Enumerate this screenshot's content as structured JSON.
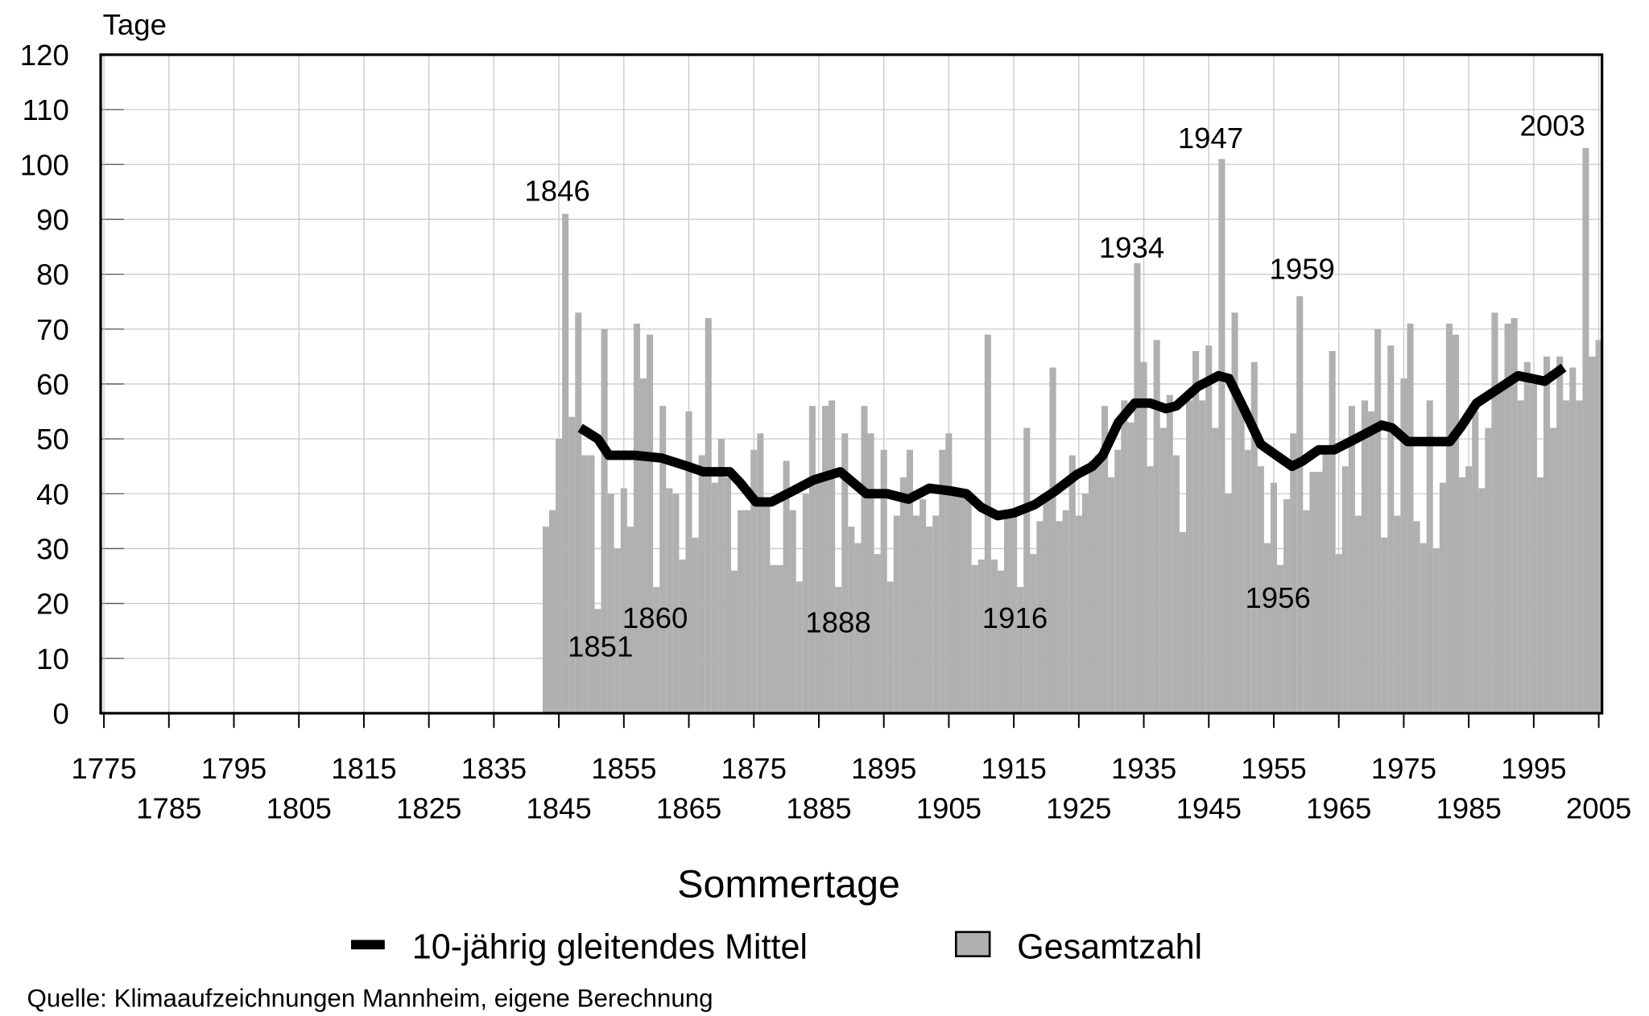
{
  "chart_data": {
    "type": "bar",
    "title": "Sommertage",
    "ylabel": "Tage",
    "source": "Quelle: Klimaaufzeichnungen Mannheim, eigene Berechnung",
    "xlim": [
      1774.5,
      2005.5
    ],
    "ylim": [
      0,
      120
    ],
    "xticks": [
      1775,
      1785,
      1795,
      1805,
      1815,
      1825,
      1835,
      1845,
      1855,
      1865,
      1875,
      1885,
      1895,
      1905,
      1915,
      1925,
      1935,
      1945,
      1955,
      1965,
      1975,
      1985,
      1995,
      2005
    ],
    "yticks": [
      0,
      10,
      20,
      30,
      40,
      50,
      60,
      70,
      80,
      90,
      100,
      110,
      120
    ],
    "grid": true,
    "series": [
      {
        "name": "Gesamtzahl",
        "type": "bar",
        "color": "#b0b0b0",
        "x": [
          1843,
          1844,
          1845,
          1846,
          1847,
          1848,
          1849,
          1850,
          1851,
          1852,
          1853,
          1854,
          1855,
          1856,
          1857,
          1858,
          1859,
          1860,
          1861,
          1862,
          1863,
          1864,
          1865,
          1866,
          1867,
          1868,
          1869,
          1870,
          1871,
          1872,
          1873,
          1874,
          1875,
          1876,
          1877,
          1878,
          1879,
          1880,
          1881,
          1882,
          1883,
          1884,
          1885,
          1886,
          1887,
          1888,
          1889,
          1890,
          1891,
          1892,
          1893,
          1894,
          1895,
          1896,
          1897,
          1898,
          1899,
          1900,
          1901,
          1902,
          1903,
          1904,
          1905,
          1906,
          1907,
          1908,
          1909,
          1910,
          1911,
          1912,
          1913,
          1914,
          1915,
          1916,
          1917,
          1918,
          1919,
          1920,
          1921,
          1922,
          1923,
          1924,
          1925,
          1926,
          1927,
          1928,
          1929,
          1930,
          1931,
          1932,
          1933,
          1934,
          1935,
          1936,
          1937,
          1938,
          1939,
          1940,
          1941,
          1942,
          1943,
          1944,
          1945,
          1946,
          1947,
          1948,
          1949,
          1950,
          1951,
          1952,
          1953,
          1954,
          1955,
          1956,
          1957,
          1958,
          1959,
          1960,
          1961,
          1962,
          1963,
          1964,
          1965,
          1966,
          1967,
          1968,
          1969,
          1970,
          1971,
          1972,
          1973,
          1974,
          1975,
          1976,
          1977,
          1978,
          1979,
          1980,
          1981,
          1982,
          1983,
          1984,
          1985,
          1986,
          1987,
          1988,
          1989,
          1990,
          1991,
          1992,
          1993,
          1994,
          1995,
          1996,
          1997,
          1998,
          1999,
          2000,
          2001,
          2002,
          2003,
          2004,
          2005
        ],
        "values": [
          34,
          37,
          50,
          91,
          54,
          73,
          47,
          47,
          19,
          70,
          40,
          30,
          41,
          34,
          71,
          61,
          69,
          23,
          56,
          41,
          40,
          28,
          55,
          32,
          47,
          72,
          42,
          50,
          43,
          26,
          37,
          37,
          48,
          51,
          38,
          27,
          27,
          46,
          37,
          24,
          40,
          56,
          43,
          56,
          57,
          23,
          51,
          34,
          31,
          56,
          51,
          29,
          48,
          24,
          36,
          43,
          48,
          36,
          39,
          34,
          36,
          48,
          51,
          40,
          40,
          40,
          27,
          28,
          69,
          28,
          26,
          36,
          36,
          23,
          52,
          29,
          35,
          39,
          63,
          35,
          37,
          47,
          36,
          40,
          46,
          47,
          56,
          43,
          48,
          57,
          53,
          82,
          64,
          45,
          68,
          52,
          58,
          47,
          33,
          57,
          66,
          57,
          67,
          52,
          101,
          40,
          73,
          56,
          48,
          64,
          45,
          31,
          42,
          27,
          39,
          51,
          76,
          37,
          44,
          44,
          48,
          66,
          29,
          45,
          56,
          36,
          57,
          55,
          70,
          32,
          67,
          36,
          61,
          71,
          35,
          31,
          57,
          30,
          42,
          71,
          69,
          43,
          45,
          55,
          41,
          52,
          73,
          60,
          71,
          72,
          57,
          64,
          60,
          43,
          65,
          52,
          65,
          57,
          63,
          57,
          103,
          65,
          68
        ]
      },
      {
        "name": "10-jährig gleitendes Mittel",
        "type": "line",
        "color": "#000000",
        "x": [
          1848.3,
          1851,
          1852.7,
          1856.7,
          1860.8,
          1864.8,
          1867.2,
          1871.3,
          1872.9,
          1875.3,
          1877.7,
          1881,
          1884.2,
          1888.3,
          1892.3,
          1895.5,
          1898.8,
          1902,
          1905.3,
          1907.7,
          1910,
          1912.5,
          1915,
          1918.2,
          1921.4,
          1924.7,
          1927.1,
          1928.7,
          1931.1,
          1933.6,
          1936,
          1938.4,
          1940,
          1943.3,
          1946.5,
          1948.1,
          1950.6,
          1953,
          1955.4,
          1957.8,
          1959.5,
          1961.9,
          1964.3,
          1967.6,
          1971.6,
          1973.2,
          1975.6,
          1978.9,
          1982.1,
          1983.7,
          1986.2,
          1989.4,
          1992.6,
          1996.7,
          1999.6
        ],
        "values": [
          52,
          50,
          47,
          47,
          46.5,
          45,
          44,
          44,
          42,
          38.5,
          38.5,
          40.5,
          42.5,
          44,
          40,
          40,
          39,
          41,
          40.5,
          40,
          37.5,
          36,
          36.5,
          38,
          40.5,
          43.5,
          45,
          47,
          53,
          56.5,
          56.5,
          55.5,
          56,
          59.5,
          61.5,
          61,
          55,
          49,
          47,
          45,
          46,
          48,
          48,
          50,
          52.5,
          52,
          49.5,
          49.5,
          49.5,
          52,
          56.5,
          59,
          61.5,
          60.5,
          63
        ]
      }
    ],
    "annotations": [
      "1846",
      "1851",
      "1860",
      "1888",
      "1916",
      "1934",
      "1947",
      "1956",
      "1959",
      "2003"
    ]
  }
}
